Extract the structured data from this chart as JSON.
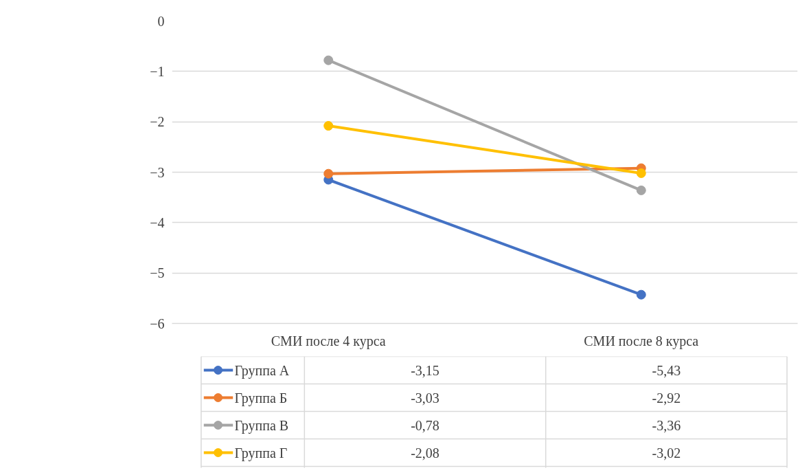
{
  "chart_data": {
    "type": "line",
    "categories": [
      "СМИ после 4 курса",
      "СМИ после 8 курса"
    ],
    "series": [
      {
        "name": "Группа А",
        "color": "#4472c4",
        "values": [
          -3.15,
          -5.43
        ],
        "value_labels": [
          "-3,15",
          "-5,43"
        ]
      },
      {
        "name": "Группа Б",
        "color": "#ed7d31",
        "values": [
          -3.03,
          -2.92
        ],
        "value_labels": [
          "-3,03",
          "-2,92"
        ]
      },
      {
        "name": "Группа В",
        "color": "#a5a5a5",
        "values": [
          -0.78,
          -3.36
        ],
        "value_labels": [
          "-0,78",
          "-3,36"
        ]
      },
      {
        "name": "Группа Г",
        "color": "#ffc000",
        "values": [
          -2.08,
          -3.02
        ],
        "value_labels": [
          "-2,08",
          "-3,02"
        ]
      }
    ],
    "ylim": [
      -6,
      0
    ],
    "yticks": [
      0,
      -1,
      -2,
      -3,
      -4,
      -5,
      -6
    ],
    "grid": "y",
    "legend": "bottom",
    "marker": "circle",
    "line_style": "solid"
  }
}
